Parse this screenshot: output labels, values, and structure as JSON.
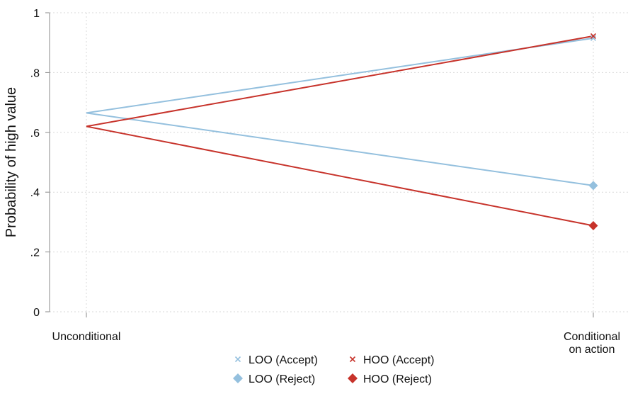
{
  "chart_data": {
    "type": "line",
    "categories": [
      "Unconditional",
      "Conditional on action"
    ],
    "x_tick_labels": [
      [
        "Unconditional"
      ],
      [
        "Conditional",
        "on action"
      ]
    ],
    "ylabel": "Probability of high value",
    "xlabel": "",
    "ylim": [
      0,
      1
    ],
    "y_ticks": [
      0,
      0.2,
      0.4,
      0.6,
      0.8,
      1
    ],
    "y_tick_labels": [
      "0",
      ".2",
      ".4",
      ".6",
      ".8",
      "1"
    ],
    "grid": true,
    "legend_position": "bottom",
    "series": [
      {
        "name": "LOO (Accept)",
        "values": [
          0.665,
          0.915
        ],
        "color": "#94c0de",
        "marker": "x"
      },
      {
        "name": "HOO (Accept)",
        "values": [
          0.62,
          0.922
        ],
        "color": "#c7332b",
        "marker": "x"
      },
      {
        "name": "LOO (Reject)",
        "values": [
          0.665,
          0.422
        ],
        "color": "#94c0de",
        "marker": "diamond"
      },
      {
        "name": "HOO (Reject)",
        "values": [
          0.62,
          0.288
        ],
        "color": "#c7332b",
        "marker": "diamond"
      }
    ]
  }
}
